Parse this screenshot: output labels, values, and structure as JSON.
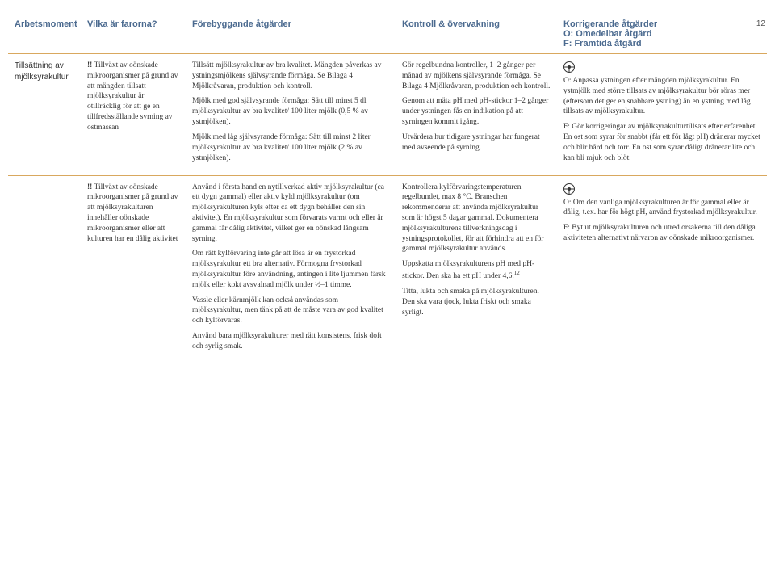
{
  "page_number": "12",
  "headers": {
    "arbetsmoment": "Arbetsmoment",
    "faror": "Vilka är farorna?",
    "forebyggande": "Förebyggande åtgärder",
    "kontroll": "Kontroll & övervakning",
    "korrigerande": "Korrigerande åtgärder",
    "korr_sub1": "O: Omedelbar åtgärd",
    "korr_sub2": "F: Framtida åtgärd"
  },
  "colors": {
    "header_text": "#4b6a8f",
    "rule": "#d9a85e"
  },
  "row1": {
    "arb": "Tillsättning av mjölksyrakultur",
    "faror_lead": "!!",
    "faror": "Tillväxt av oönskade mikroorganismer på grund av att mängden tillsatt mjölksyrakultur är otillräcklig för att ge en tillfredsställande syrning av ostmassan",
    "foreby_p1": "Tillsätt mjölksyrakultur av bra kvalitet. Mängden påverkas av ystningsmjölkens självsyrande förmåga. Se Bilaga 4 Mjölkråvaran, produktion och kontroll.",
    "foreby_p2": "Mjölk med god självsyrande förmåga: Sätt till minst 5 dl mjölksyrakultur av bra kvalitet/ 100 liter mjölk (0,5 % av ystmjölken).",
    "foreby_p3": "Mjölk med låg självsyrande förmåga: Sätt till minst 2 liter mjölksyrakultur av bra kvalitet/ 100 liter mjölk (2 % av ystmjölken).",
    "kontroll_p1": "Gör regelbundna kontroller, 1–2 gånger per månad av mjölkens självsyrande förmåga. Se Bilaga 4 Mjölkråvaran, produktion och kontroll.",
    "kontroll_p2": "Genom att mäta pH med pH-stickor 1–2 gånger under ystningen fås en indikation på att syrningen kommit igång.",
    "kontroll_p3": "Utvärdera hur tidigare ystningar har fungerat med avseende på syrning.",
    "korr_p1": "O: Anpassa ystningen efter mängden mjölksyrakultur. En ystmjölk med större tillsats av mjölksyrakultur bör röras mer (eftersom det ger en snabbare ystning) än en ystning med låg tillsats av mjölksyrakultur.",
    "korr_p2": "F: Gör korrigeringar av mjölksyrakulturtillsats efter erfarenhet. En ost som syrar för snabbt (får ett för lågt pH) dränerar mycket och blir hård och torr. En ost som syrar dåligt dränerar lite och kan bli mjuk och blöt."
  },
  "row2": {
    "faror_lead": "!!",
    "faror": "Tillväxt av oönskade mikroorganismer på grund av att mjölksyrakulturen innehåller oönskade mikroorganismer eller att kulturen har en dålig aktivitet",
    "foreby_p1": "Använd i första hand en nytillverkad aktiv mjölksyrakultur (ca ett dygn gammal) eller aktiv kyld mjölksyrakultur (om mjölksyrakulturen kyls efter ca ett dygn behåller den sin aktivitet). En mjölksyrakultur som förvarats varmt och eller är gammal får dålig aktivitet, vilket ger en oönskad långsam syrning.",
    "foreby_p2": "Om rätt kylförvaring inte går att lösa är en frystorkad mjölksyrakultur ett bra alternativ. Förmogna frystorkad mjölksyrakultur före användning, antingen i lite ljummen färsk mjölk eller kokt avsvalnad mjölk under ½–1 timme.",
    "foreby_p3": "Vassle eller kärnmjölk kan också användas som mjölksyrakultur, men tänk på att de måste vara av god kvalitet och kylförvaras.",
    "foreby_p4": "Använd bara mjölksyrakulturer med rätt konsistens, frisk doft och syrlig smak.",
    "kontroll_p1a": "Kontrollera kylförvaringstemperaturen regelbundet, max 8 °C. Branschen rekommenderar att använda mjölksyrakultur som är högst 5 dagar gammal. Dokumentera mjölksyrakulturens tillverkningsdag i ystningsprotokollet, för att förhindra att en för gammal mjölksyrakultur används.",
    "kontroll_p2a": "Uppskatta mjölksyrakulturens pH med pH-stickor. Den ska ha ett pH under 4,6.",
    "kontroll_p2a_sup": "12",
    "kontroll_p3": "Titta, lukta och smaka på mjölksyrakulturen. Den ska vara tjock, lukta friskt och smaka syrligt.",
    "korr_p1": "O: Om den vanliga mjölksyrakulturen är för gammal eller är dålig, t.ex. har för högt pH, använd frystorkad mjölksyrakultur.",
    "korr_p2": "F: Byt ut mjölksyrakulturen och utred orsakerna till den dåliga aktiviteten alternativt närvaron av oönskade mikroorganismer."
  }
}
